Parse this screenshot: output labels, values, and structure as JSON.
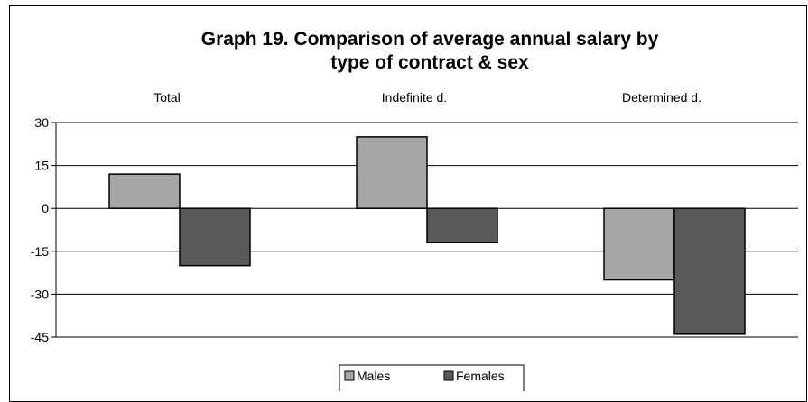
{
  "chart_data": {
    "type": "bar",
    "title_line1": "Graph 19. Comparison of average annual salary by",
    "title_line2": "type of contract & sex",
    "categories": [
      "Total",
      "Indefinite d.",
      "Determined d."
    ],
    "series": [
      {
        "name": "Males",
        "values": [
          12,
          25,
          -25
        ],
        "color": "#a6a6a6"
      },
      {
        "name": "Females",
        "values": [
          -20,
          -12,
          -44
        ],
        "color": "#595959"
      }
    ],
    "ylim": [
      -45,
      30
    ],
    "yticks": [
      30,
      15,
      0,
      -15,
      -30,
      -45
    ],
    "grid": true,
    "legend": "bottom-center"
  }
}
